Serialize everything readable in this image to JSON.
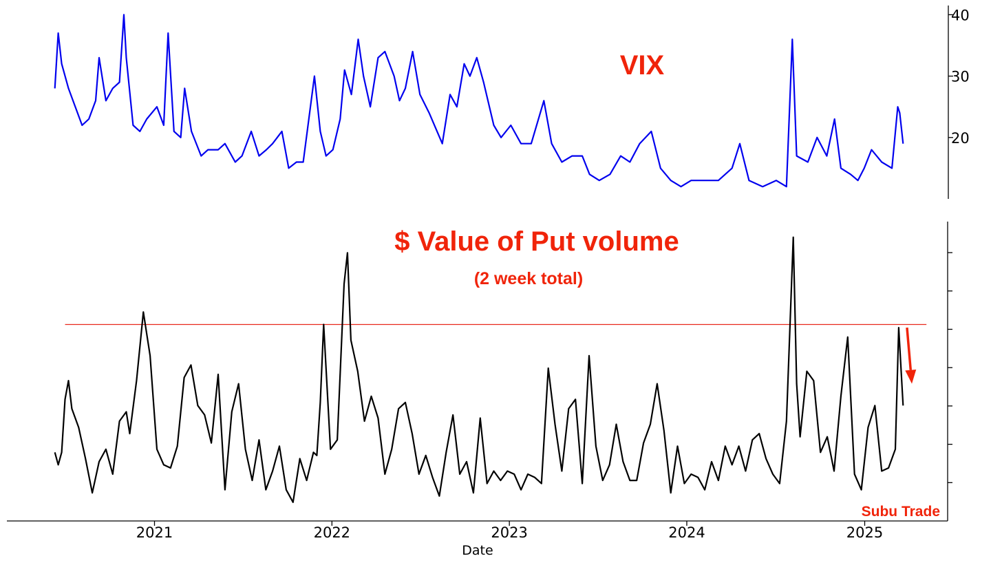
{
  "colors": {
    "vix_line": "#0000ee",
    "put_line": "#000000",
    "annotation": "#f0240a",
    "reference_line": "#e8271a",
    "arrow": "#f0240a"
  },
  "chart_data": [
    {
      "type": "line",
      "panel": "top",
      "title": "VIX",
      "xlabel": "",
      "ylabel": "",
      "y_axis_side": "right",
      "ylim": [
        10,
        41.5
      ],
      "yticks": [
        20,
        30,
        40
      ],
      "ytick_labels": [
        "20",
        "30",
        "40"
      ],
      "x_range": [
        "2020-06-10",
        "2025-03-21"
      ],
      "series": [
        {
          "name": "",
          "x": [
            "2020-06-10",
            "2020-06-17",
            "2020-06-24",
            "2020-07-08",
            "2020-07-22",
            "2020-08-05",
            "2020-08-19",
            "2020-09-02",
            "2020-09-09",
            "2020-09-23",
            "2020-10-07",
            "2020-10-21",
            "2020-10-30",
            "2020-11-04",
            "2020-11-18",
            "2020-12-02",
            "2020-12-16",
            "2021-01-06",
            "2021-01-20",
            "2021-01-29",
            "2021-02-10",
            "2021-02-24",
            "2021-03-04",
            "2021-03-18",
            "2021-04-07",
            "2021-04-21",
            "2021-05-12",
            "2021-05-26",
            "2021-06-16",
            "2021-06-30",
            "2021-07-19",
            "2021-08-04",
            "2021-08-19",
            "2021-09-01",
            "2021-09-20",
            "2021-10-04",
            "2021-10-20",
            "2021-11-03",
            "2021-11-26",
            "2021-12-08",
            "2021-12-20",
            "2022-01-03",
            "2022-01-18",
            "2022-01-27",
            "2022-02-10",
            "2022-02-24",
            "2022-03-07",
            "2022-03-21",
            "2022-04-06",
            "2022-04-20",
            "2022-05-09",
            "2022-05-20",
            "2022-06-01",
            "2022-06-16",
            "2022-07-01",
            "2022-07-20",
            "2022-08-16",
            "2022-09-01",
            "2022-09-15",
            "2022-09-30",
            "2022-10-12",
            "2022-10-26",
            "2022-11-09",
            "2022-11-30",
            "2022-12-15",
            "2023-01-04",
            "2023-01-25",
            "2023-02-15",
            "2023-03-13",
            "2023-03-29",
            "2023-04-19",
            "2023-05-10",
            "2023-05-31",
            "2023-06-15",
            "2023-07-05",
            "2023-07-27",
            "2023-08-18",
            "2023-09-06",
            "2023-09-26",
            "2023-10-20",
            "2023-11-08",
            "2023-11-29",
            "2023-12-20",
            "2024-01-10",
            "2024-02-07",
            "2024-03-06",
            "2024-04-03",
            "2024-04-19",
            "2024-05-08",
            "2024-06-05",
            "2024-07-03",
            "2024-07-24",
            "2024-08-05",
            "2024-08-14",
            "2024-09-06",
            "2024-09-25",
            "2024-10-15",
            "2024-10-31",
            "2024-11-13",
            "2024-12-03",
            "2024-12-18",
            "2024-12-31",
            "2025-01-15",
            "2025-02-05",
            "2025-02-26",
            "2025-03-10",
            "2025-03-14",
            "2025-03-21"
          ],
          "values": [
            28,
            37,
            32,
            28,
            25,
            22,
            23,
            26,
            33,
            26,
            28,
            29,
            40,
            33,
            22,
            21,
            23,
            25,
            22,
            37,
            21,
            20,
            28,
            21,
            17,
            18,
            18,
            19,
            16,
            17,
            21,
            17,
            18,
            19,
            21,
            15,
            16,
            16,
            30,
            21,
            17,
            18,
            23,
            31,
            27,
            36,
            30,
            25,
            33,
            34,
            30,
            26,
            28,
            34,
            27,
            24,
            19,
            27,
            25,
            32,
            30,
            33,
            29,
            22,
            20,
            22,
            19,
            19,
            26,
            19,
            16,
            17,
            17,
            14,
            13,
            14,
            17,
            16,
            19,
            21,
            15,
            13,
            12,
            13,
            13,
            13,
            15,
            19,
            13,
            12,
            13,
            12,
            36,
            17,
            16,
            20,
            17,
            23,
            15,
            14,
            13,
            15,
            18,
            16,
            15,
            25,
            24,
            19
          ]
        }
      ]
    },
    {
      "type": "line",
      "panel": "bottom",
      "title": "$ Value of Put volume",
      "subtitle": "(2 week total)",
      "xlabel": "Date",
      "ylabel": "",
      "y_axis_side": "right",
      "ytick_labels": [],
      "xticks": [
        "2021",
        "2022",
        "2023",
        "2024",
        "2025"
      ],
      "x_range": [
        "2020-06-10",
        "2025-03-21"
      ],
      "ylim": [
        0,
        9.6
      ],
      "reference_line": {
        "y": 6.3,
        "from": "2020-07-01",
        "to": "2025-05-08"
      },
      "arrow_annotation": {
        "from": [
          "2025-03-29",
          6.2
        ],
        "to": [
          "2025-04-08",
          4.4
        ]
      },
      "watermark": "Subu Trade",
      "series": [
        {
          "name": "",
          "x": [
            "2020-06-10",
            "2020-06-17",
            "2020-06-24",
            "2020-07-01",
            "2020-07-08",
            "2020-07-15",
            "2020-07-29",
            "2020-08-12",
            "2020-08-26",
            "2020-09-09",
            "2020-09-23",
            "2020-10-07",
            "2020-10-21",
            "2020-11-04",
            "2020-11-11",
            "2020-11-25",
            "2020-12-09",
            "2020-12-23",
            "2021-01-06",
            "2021-01-20",
            "2021-02-03",
            "2021-02-17",
            "2021-03-03",
            "2021-03-17",
            "2021-03-31",
            "2021-04-14",
            "2021-04-28",
            "2021-05-12",
            "2021-05-26",
            "2021-06-09",
            "2021-06-23",
            "2021-07-07",
            "2021-07-21",
            "2021-08-04",
            "2021-08-18",
            "2021-09-01",
            "2021-09-15",
            "2021-09-29",
            "2021-10-13",
            "2021-10-27",
            "2021-11-10",
            "2021-11-24",
            "2021-12-01",
            "2021-12-08",
            "2021-12-15",
            "2021-12-29",
            "2022-01-12",
            "2022-01-26",
            "2022-02-02",
            "2022-02-09",
            "2022-02-23",
            "2022-03-09",
            "2022-03-23",
            "2022-04-06",
            "2022-04-20",
            "2022-05-04",
            "2022-05-18",
            "2022-06-01",
            "2022-06-15",
            "2022-06-29",
            "2022-07-13",
            "2022-07-27",
            "2022-08-10",
            "2022-08-24",
            "2022-09-07",
            "2022-09-21",
            "2022-10-05",
            "2022-10-19",
            "2022-11-02",
            "2022-11-16",
            "2022-11-30",
            "2022-12-14",
            "2022-12-28",
            "2023-01-11",
            "2023-01-25",
            "2023-02-08",
            "2023-02-22",
            "2023-03-08",
            "2023-03-22",
            "2023-04-05",
            "2023-04-19",
            "2023-05-03",
            "2023-05-17",
            "2023-05-31",
            "2023-06-14",
            "2023-06-28",
            "2023-07-12",
            "2023-07-26",
            "2023-08-09",
            "2023-08-23",
            "2023-09-06",
            "2023-09-20",
            "2023-10-04",
            "2023-10-18",
            "2023-11-01",
            "2023-11-15",
            "2023-11-29",
            "2023-12-13",
            "2023-12-27",
            "2024-01-10",
            "2024-01-24",
            "2024-02-07",
            "2024-02-21",
            "2024-03-06",
            "2024-03-20",
            "2024-04-03",
            "2024-04-17",
            "2024-05-01",
            "2024-05-15",
            "2024-05-29",
            "2024-06-12",
            "2024-06-26",
            "2024-07-10",
            "2024-07-24",
            "2024-08-07",
            "2024-08-14",
            "2024-08-21",
            "2024-09-04",
            "2024-09-18",
            "2024-10-02",
            "2024-10-16",
            "2024-10-30",
            "2024-11-13",
            "2024-11-27",
            "2024-12-11",
            "2024-12-25",
            "2025-01-08",
            "2025-01-22",
            "2025-02-05",
            "2025-02-19",
            "2025-03-05",
            "2025-03-12",
            "2025-03-21"
          ],
          "values": [
            2.2,
            1.8,
            2.2,
            3.9,
            4.5,
            3.6,
            3.0,
            2.0,
            0.9,
            1.9,
            2.3,
            1.5,
            3.2,
            3.5,
            2.8,
            4.5,
            6.7,
            5.3,
            2.3,
            1.8,
            1.7,
            2.4,
            4.6,
            5.0,
            3.7,
            3.4,
            2.5,
            4.7,
            1.0,
            3.5,
            4.4,
            2.3,
            1.3,
            2.6,
            1.0,
            1.6,
            2.4,
            1.0,
            0.6,
            2.0,
            1.3,
            2.2,
            2.1,
            3.8,
            6.3,
            2.3,
            2.6,
            7.6,
            8.6,
            5.8,
            4.8,
            3.2,
            4.0,
            3.3,
            1.5,
            2.3,
            3.6,
            3.8,
            2.8,
            1.5,
            2.1,
            1.4,
            0.8,
            2.2,
            3.4,
            1.5,
            1.9,
            0.9,
            3.3,
            1.2,
            1.6,
            1.3,
            1.6,
            1.5,
            1.0,
            1.5,
            1.4,
            1.2,
            4.9,
            3.1,
            1.6,
            3.6,
            3.9,
            1.2,
            5.3,
            2.4,
            1.3,
            1.8,
            3.1,
            1.9,
            1.3,
            1.3,
            2.5,
            3.1,
            4.4,
            2.9,
            0.9,
            2.4,
            1.2,
            1.5,
            1.4,
            1.0,
            1.9,
            1.3,
            2.4,
            1.8,
            2.4,
            1.6,
            2.6,
            2.8,
            2.0,
            1.5,
            1.2,
            3.2,
            9.1,
            4.4,
            2.7,
            4.8,
            4.5,
            2.2,
            2.7,
            1.6,
            4.0,
            5.9,
            1.5,
            1.0,
            3.0,
            3.7,
            1.6,
            1.7,
            2.3,
            6.2,
            3.7
          ]
        }
      ]
    }
  ]
}
